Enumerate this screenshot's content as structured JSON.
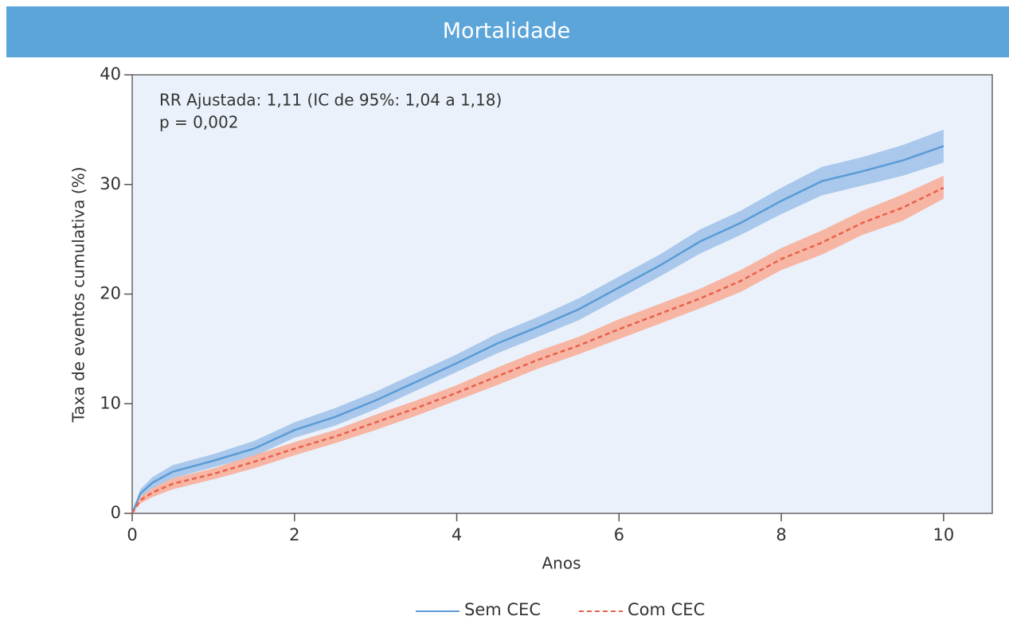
{
  "chart_data": {
    "type": "line",
    "title": "Mortalidade",
    "annotations": [
      "RR Ajustada: 1,11 (IC de 95%: 1,04 a 1,18)",
      "p = 0,002"
    ],
    "x_label": "Anos",
    "y_label": "Taxa de eventos cumulativa (%)",
    "x": [
      0,
      0.1,
      0.25,
      0.5,
      1,
      1.5,
      2,
      2.5,
      3,
      3.5,
      4,
      4.5,
      5,
      5.5,
      6,
      6.5,
      7,
      7.5,
      8,
      8.5,
      9,
      9.5,
      10
    ],
    "series": [
      {
        "name": "Sem CEC",
        "color": "#5b9bd5",
        "band_color": "#a9c8ec",
        "dash": false,
        "values": [
          0,
          1.8,
          2.8,
          3.8,
          4.8,
          5.9,
          7.6,
          8.8,
          10.3,
          12.0,
          13.7,
          15.5,
          17.0,
          18.6,
          20.6,
          22.6,
          24.8,
          26.5,
          28.5,
          30.3,
          31.2,
          32.2,
          33.5
        ],
        "lower": [
          0,
          1.4,
          2.3,
          3.2,
          4.2,
          5.2,
          6.9,
          8.0,
          9.5,
          11.2,
          12.9,
          14.6,
          16.1,
          17.6,
          19.6,
          21.6,
          23.7,
          25.4,
          27.3,
          29.0,
          29.9,
          30.8,
          32.0
        ],
        "upper": [
          0,
          2.2,
          3.3,
          4.4,
          5.4,
          6.6,
          8.3,
          9.6,
          11.1,
          12.8,
          14.5,
          16.4,
          17.9,
          19.6,
          21.6,
          23.6,
          25.9,
          27.6,
          29.7,
          31.6,
          32.5,
          33.6,
          35.0
        ]
      },
      {
        "name": "Com CEC",
        "color": "#e8604c",
        "band_color": "#f7b5a3",
        "dash": true,
        "values": [
          0,
          1.2,
          1.9,
          2.7,
          3.6,
          4.7,
          5.9,
          7.0,
          8.3,
          9.6,
          11.0,
          12.5,
          14.0,
          15.3,
          16.8,
          18.2,
          19.6,
          21.2,
          23.2,
          24.7,
          26.5,
          27.9,
          29.7
        ],
        "lower": [
          0,
          0.9,
          1.5,
          2.2,
          3.1,
          4.1,
          5.3,
          6.4,
          7.6,
          8.9,
          10.3,
          11.7,
          13.2,
          14.5,
          15.9,
          17.3,
          18.7,
          20.2,
          22.2,
          23.6,
          25.4,
          26.7,
          28.7
        ],
        "upper": [
          0,
          1.5,
          2.3,
          3.2,
          4.1,
          5.3,
          6.5,
          7.6,
          9.0,
          10.3,
          11.7,
          13.3,
          14.8,
          16.1,
          17.7,
          19.1,
          20.5,
          22.2,
          24.2,
          25.8,
          27.6,
          29.1,
          30.8
        ]
      }
    ],
    "xlim": [
      0,
      10.6
    ],
    "ylim": [
      0,
      40
    ],
    "xticks": [
      0,
      2,
      4,
      6,
      8,
      10
    ],
    "yticks": [
      0,
      10,
      20,
      30,
      40
    ],
    "grid": false
  }
}
